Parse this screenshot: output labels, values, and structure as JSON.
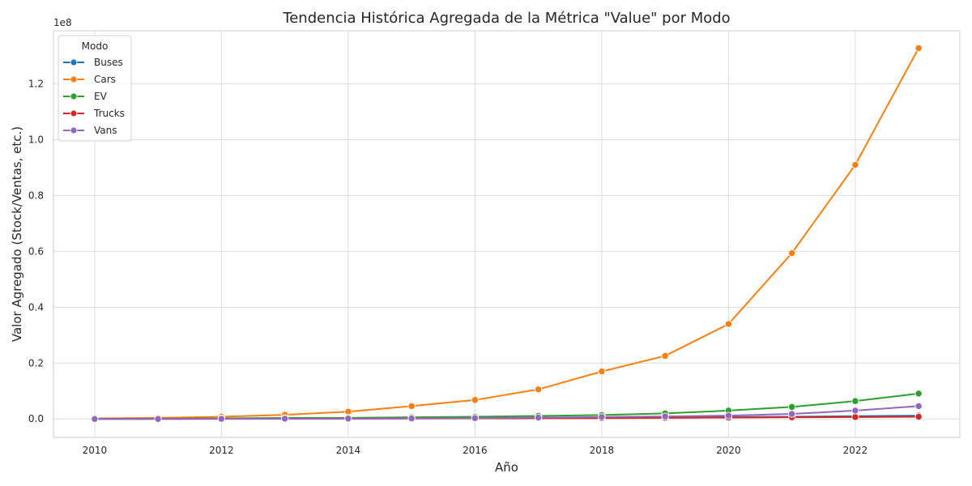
{
  "chart_data": {
    "type": "line",
    "title": "Tendencia Histórica Agregada de la Métrica \"Value\" por Modo",
    "xlabel": "Año",
    "ylabel": "Valor Agregado (Stock/Ventas, etc.)",
    "y_offset_label": "1e8",
    "x": [
      2010,
      2011,
      2012,
      2013,
      2014,
      2015,
      2016,
      2017,
      2018,
      2019,
      2020,
      2021,
      2022,
      2023
    ],
    "x_ticks": [
      2010,
      2012,
      2014,
      2016,
      2018,
      2020,
      2022
    ],
    "x_tick_labels": [
      "2010",
      "2012",
      "2014",
      "2016",
      "2018",
      "2020",
      "2022"
    ],
    "xlim": [
      2009.35,
      2023.65
    ],
    "y_ticks": [
      0.0,
      0.2,
      0.4,
      0.6,
      0.8,
      1.0,
      1.2
    ],
    "y_tick_labels": [
      "0.0",
      "0.2",
      "0.4",
      "0.6",
      "0.8",
      "1.0",
      "1.2"
    ],
    "ylim": [
      -0.066,
      1.39
    ],
    "y_unit_multiplier": 100000000,
    "grid": true,
    "legend_title": "Modo",
    "legend_position": "top-left",
    "series": [
      {
        "name": "Buses",
        "color": "#1f77b4",
        "values": [
          0.0005,
          0.0006,
          0.0008,
          0.001,
          0.0015,
          0.002,
          0.003,
          0.004,
          0.005,
          0.006,
          0.007,
          0.008,
          0.01,
          0.012
        ]
      },
      {
        "name": "Cars",
        "color": "#ff7f0e",
        "values": [
          0.002,
          0.004,
          0.008,
          0.015,
          0.026,
          0.046,
          0.068,
          0.106,
          0.17,
          0.226,
          0.34,
          0.594,
          0.91,
          1.328
        ]
      },
      {
        "name": "EV",
        "color": "#2ca02c",
        "values": [
          0.0005,
          0.001,
          0.002,
          0.0035,
          0.004,
          0.006,
          0.008,
          0.011,
          0.014,
          0.02,
          0.03,
          0.043,
          0.064,
          0.091
        ]
      },
      {
        "name": "Trucks",
        "color": "#d62728",
        "values": [
          0.0,
          0.0,
          0.0005,
          0.0008,
          0.001,
          0.0015,
          0.002,
          0.0025,
          0.003,
          0.004,
          0.005,
          0.006,
          0.007,
          0.008
        ]
      },
      {
        "name": "Vans",
        "color": "#9467bd",
        "values": [
          0.0,
          0.0,
          0.0005,
          0.001,
          0.0015,
          0.002,
          0.003,
          0.005,
          0.007,
          0.009,
          0.012,
          0.018,
          0.03,
          0.046
        ]
      }
    ]
  }
}
